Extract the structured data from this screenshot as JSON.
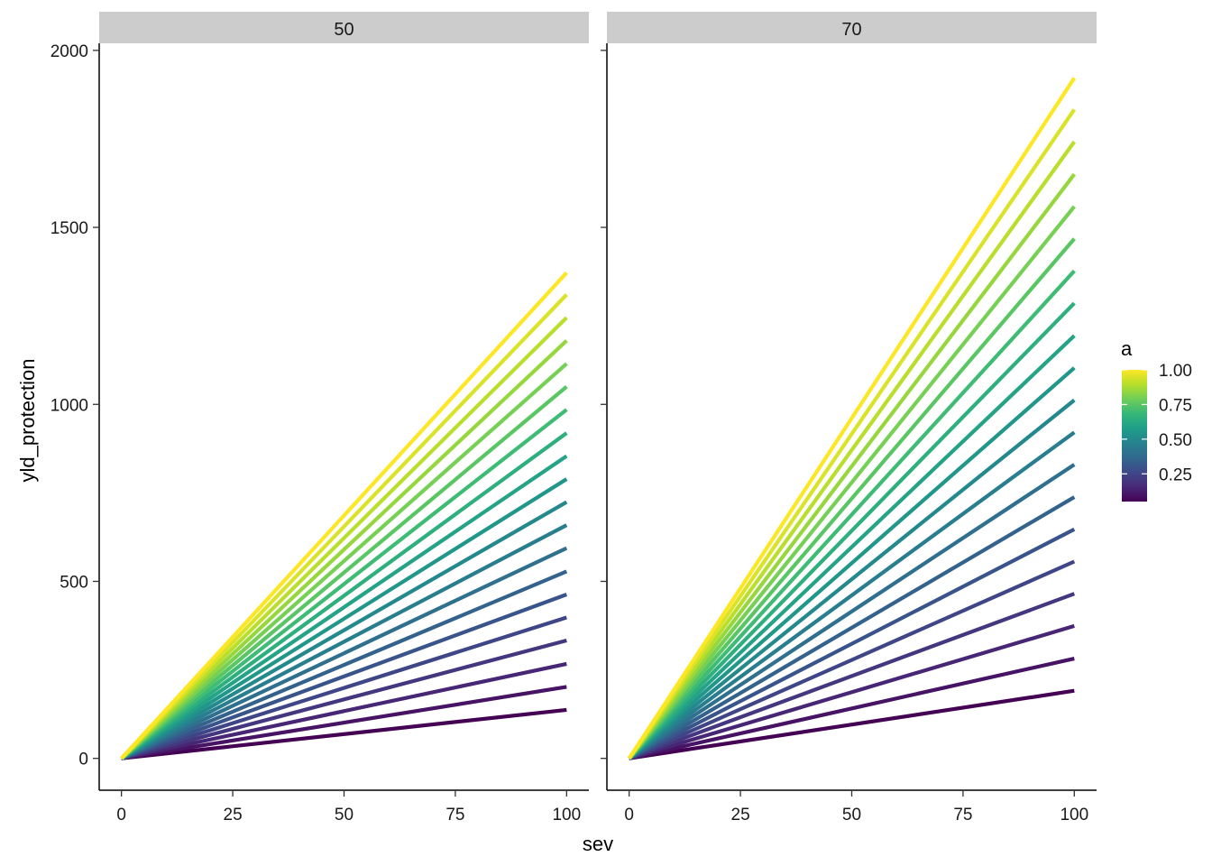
{
  "chart_data": {
    "type": "line",
    "facet_variable": "",
    "facets": [
      {
        "label": "50",
        "x_start": 0,
        "x_end": 100,
        "y_end_values": [
          137,
          202,
          267,
          333,
          398,
          463,
          528,
          594,
          659,
          724,
          789,
          854,
          919,
          985,
          1050,
          1115,
          1180,
          1245,
          1310,
          1372
        ]
      },
      {
        "label": "70",
        "x_start": 0,
        "x_end": 100,
        "y_end_values": [
          191,
          282,
          374,
          465,
          556,
          647,
          738,
          830,
          921,
          1012,
          1103,
          1194,
          1286,
          1377,
          1468,
          1559,
          1650,
          1742,
          1833,
          1922
        ]
      }
    ],
    "color_variable": "a",
    "color_values": [
      0.05,
      0.1,
      0.15,
      0.2,
      0.25,
      0.3,
      0.35,
      0.4,
      0.45,
      0.5,
      0.55,
      0.6,
      0.65,
      0.7,
      0.75,
      0.8,
      0.85,
      0.9,
      0.95,
      1.0
    ],
    "xlabel": "sev",
    "ylabel": "yld_protection",
    "xlim": [
      -5,
      105
    ],
    "ylim": [
      -90,
      2020
    ],
    "x_ticks": [
      0,
      25,
      50,
      75,
      100
    ],
    "x_tick_labels": [
      "0",
      "25",
      "50",
      "75",
      "100"
    ],
    "y_ticks": [
      0,
      500,
      1000,
      1500,
      2000
    ],
    "y_tick_labels": [
      "0",
      "500",
      "1000",
      "1500",
      "2000"
    ],
    "legend": {
      "title": "a",
      "placement": "right",
      "range": [
        0.05,
        1.0
      ],
      "breaks": [
        0.25,
        0.5,
        0.75,
        1.0
      ],
      "labels": [
        "0.25",
        "0.50",
        "0.75",
        "1.00"
      ]
    },
    "palette": [
      "#440154",
      "#482878",
      "#3e4989",
      "#31688e",
      "#26828e",
      "#1f9e89",
      "#35b779",
      "#6ece58",
      "#b5de2b",
      "#fde725"
    ],
    "grid": false,
    "strip_color": "#cccccc"
  }
}
